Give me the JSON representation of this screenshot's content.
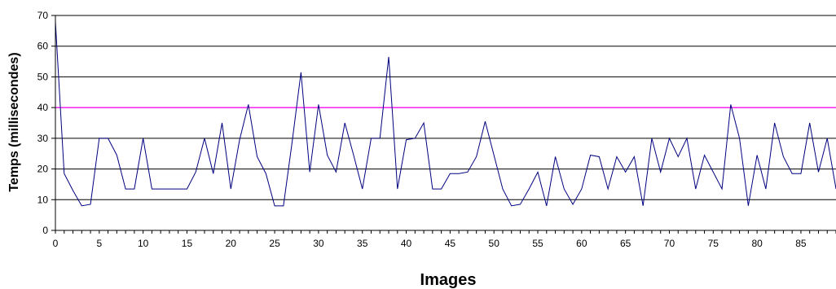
{
  "chart_data": {
    "type": "line",
    "title": "",
    "xlabel": "Images",
    "ylabel": "Temps (millisecondes)",
    "xlim": [
      0,
      89
    ],
    "ylim": [
      0,
      70
    ],
    "y_ticks": [
      0,
      10,
      20,
      30,
      40,
      50,
      60,
      70
    ],
    "x_ticks": [
      0,
      5,
      10,
      15,
      20,
      25,
      30,
      35,
      40,
      45,
      50,
      55,
      60,
      65,
      70,
      75,
      80,
      85
    ],
    "grid": "horizontal",
    "legend": "none",
    "colors": {
      "series": "#000080",
      "threshold": "#ff00ff",
      "grid": "#000000"
    },
    "threshold": {
      "value": 40
    },
    "series": [
      {
        "x": [
          0,
          1,
          2,
          3,
          4,
          5,
          6,
          7,
          8,
          9,
          10,
          11,
          12,
          13,
          14,
          15,
          16,
          17,
          18,
          19,
          20,
          21,
          22,
          23,
          24,
          25,
          26,
          27,
          28,
          29,
          30,
          31,
          32,
          33,
          34,
          35,
          36,
          37,
          38,
          39,
          40,
          41,
          42,
          43,
          44,
          45,
          46,
          47,
          48,
          49,
          50,
          51,
          52,
          53,
          54,
          55,
          56,
          57,
          58,
          59,
          60,
          61,
          62,
          63,
          64,
          65,
          66,
          67,
          68,
          69,
          70,
          71,
          72,
          73,
          74,
          75,
          76,
          77,
          78,
          79,
          80,
          81,
          82,
          83,
          84,
          85,
          86,
          87,
          88,
          89
        ],
        "values": [
          68,
          18.5,
          13,
          8,
          8.5,
          30,
          30,
          24.5,
          13.5,
          13.5,
          30,
          13.5,
          13.5,
          13.5,
          13.5,
          13.5,
          19,
          30,
          18.5,
          35,
          13.5,
          29.5,
          41,
          24,
          18.5,
          8,
          8,
          29,
          51.5,
          19,
          41,
          24.5,
          19,
          35,
          24.5,
          13.5,
          30,
          30,
          56.5,
          13.5,
          29.5,
          30,
          35,
          13.5,
          13.5,
          18.5,
          18.5,
          19,
          24,
          35.5,
          24.5,
          13.5,
          8,
          8.5,
          13.5,
          19,
          8,
          24,
          13.5,
          8.5,
          13.5,
          24.5,
          24,
          13.5,
          24,
          19,
          24,
          8,
          30,
          19,
          30,
          24,
          30,
          13.5,
          24.5,
          19,
          13.5,
          41,
          30,
          8,
          24.5,
          13.5,
          35,
          24,
          18.5,
          18.5,
          35,
          19,
          30,
          13.5
        ]
      }
    ]
  }
}
